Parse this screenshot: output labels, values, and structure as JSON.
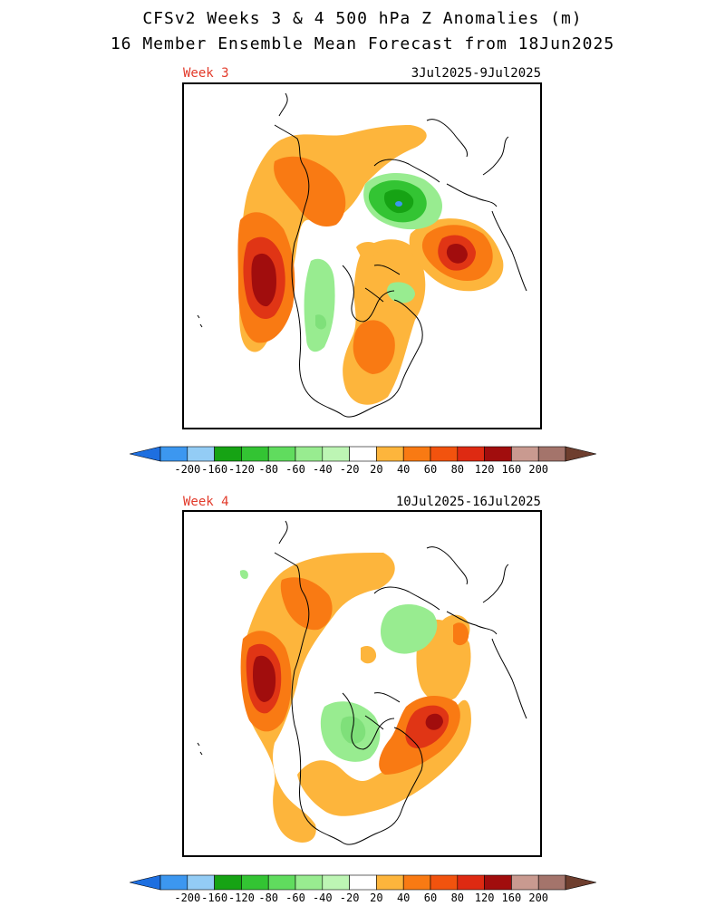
{
  "title_line1": "CFSv2 Weeks 3 & 4 500 hPa Z Anomalies (m)",
  "title_line2": "16 Member Ensemble Mean Forecast from 18Jun2025",
  "panels": [
    {
      "label": "Week 3",
      "dates": "3Jul2025-9Jul2025"
    },
    {
      "label": "Week 4",
      "dates": "10Jul2025-16Jul2025"
    }
  ],
  "colorbar": {
    "colors": [
      "#1e6fe0",
      "#3c97f0",
      "#93ccf5",
      "#16a314",
      "#33c433",
      "#60dc5e",
      "#98ec90",
      "#bdf5b4",
      "#ffffff",
      "#fdb53c",
      "#f97a13",
      "#f2530e",
      "#de2a12",
      "#a10d0d",
      "#c99a90",
      "#a4746b",
      "#6e3e2e"
    ],
    "labels": [
      "-200",
      "-160",
      "-120",
      "-80",
      "-60",
      "-40",
      "-20",
      "20",
      "40",
      "60",
      "80",
      "120",
      "160",
      "200"
    ]
  },
  "colors": {
    "pos1": "#fdb53c",
    "pos2": "#f97a13",
    "pos3": "#e03515",
    "pos4": "#a10d0d",
    "neg1": "#bdf5b4",
    "neg2": "#7fe07a",
    "neg3": "#33c433",
    "neg4": "#16a314",
    "neg5": "#3c97f0"
  }
}
